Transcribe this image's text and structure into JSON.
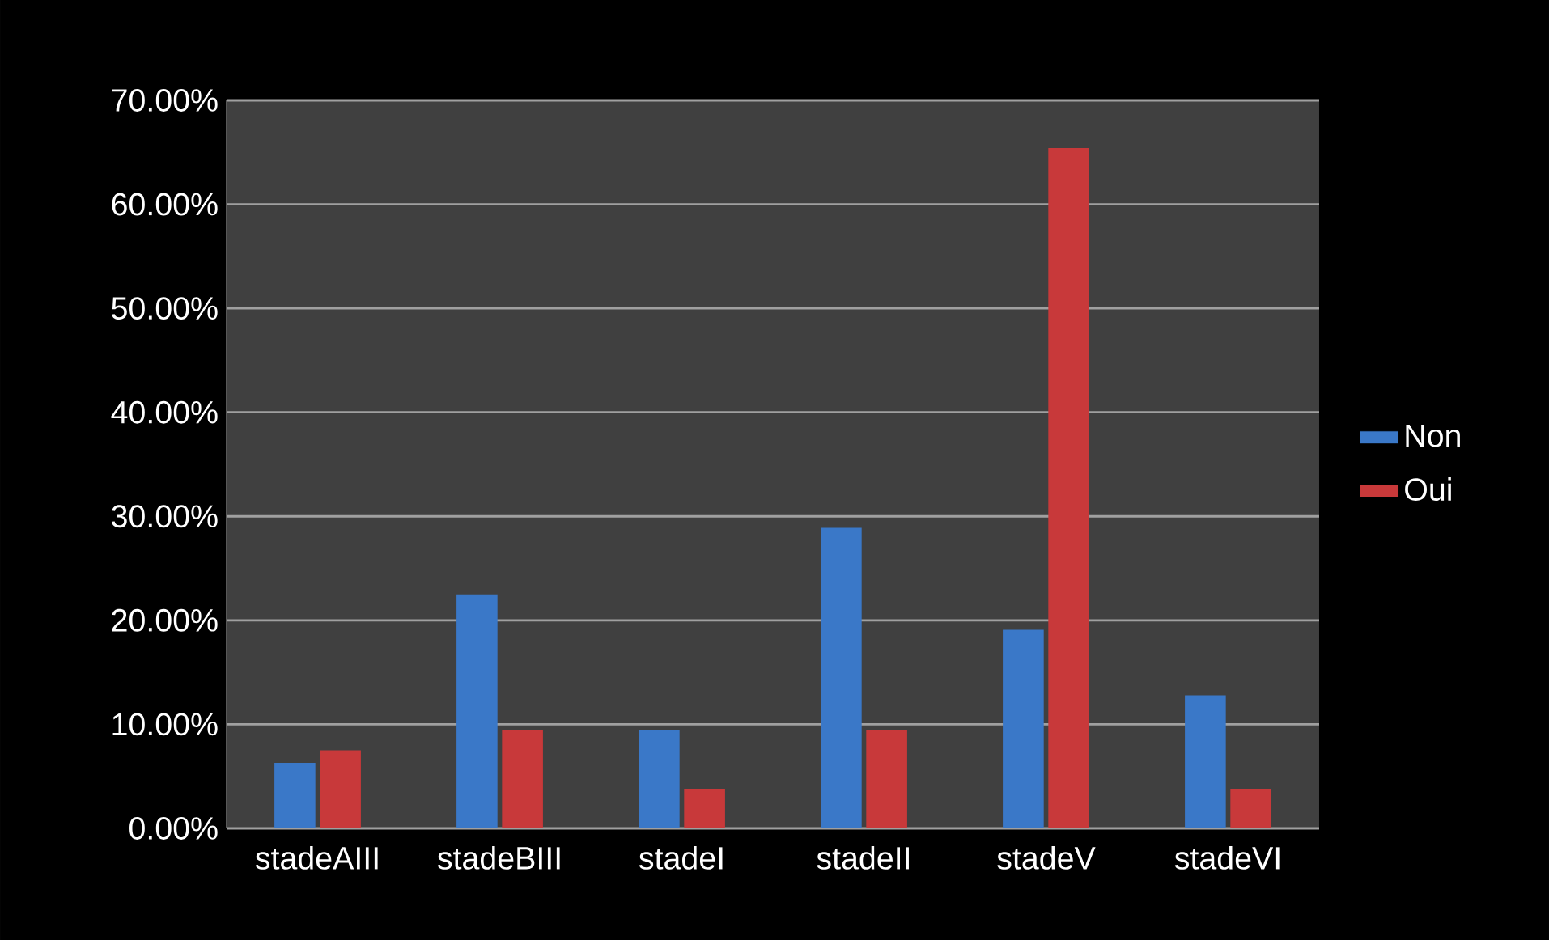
{
  "chart_data": {
    "type": "bar",
    "categories": [
      "stadeAIII",
      "stadeBIII",
      "stadeI",
      "stadeII",
      "stadeV",
      "stadeVI"
    ],
    "series": [
      {
        "name": "Non",
        "color": "#3a78c8",
        "values": [
          6.3,
          22.5,
          9.4,
          28.9,
          19.1,
          12.8
        ]
      },
      {
        "name": "Oui",
        "color": "#c8393a",
        "values": [
          7.5,
          9.4,
          3.8,
          9.4,
          65.4,
          3.8
        ]
      }
    ],
    "ylim": [
      0,
      70
    ],
    "yticks": [
      {
        "value": 0,
        "label": "0.00%"
      },
      {
        "value": 10,
        "label": "10.00%"
      },
      {
        "value": 20,
        "label": "20.00%"
      },
      {
        "value": 30,
        "label": "30.00%"
      },
      {
        "value": 40,
        "label": "40.00%"
      },
      {
        "value": 50,
        "label": "50.00%"
      },
      {
        "value": 60,
        "label": "60.00%"
      },
      {
        "value": 70,
        "label": "70.00%"
      }
    ],
    "grid": "y",
    "legend": "right"
  }
}
